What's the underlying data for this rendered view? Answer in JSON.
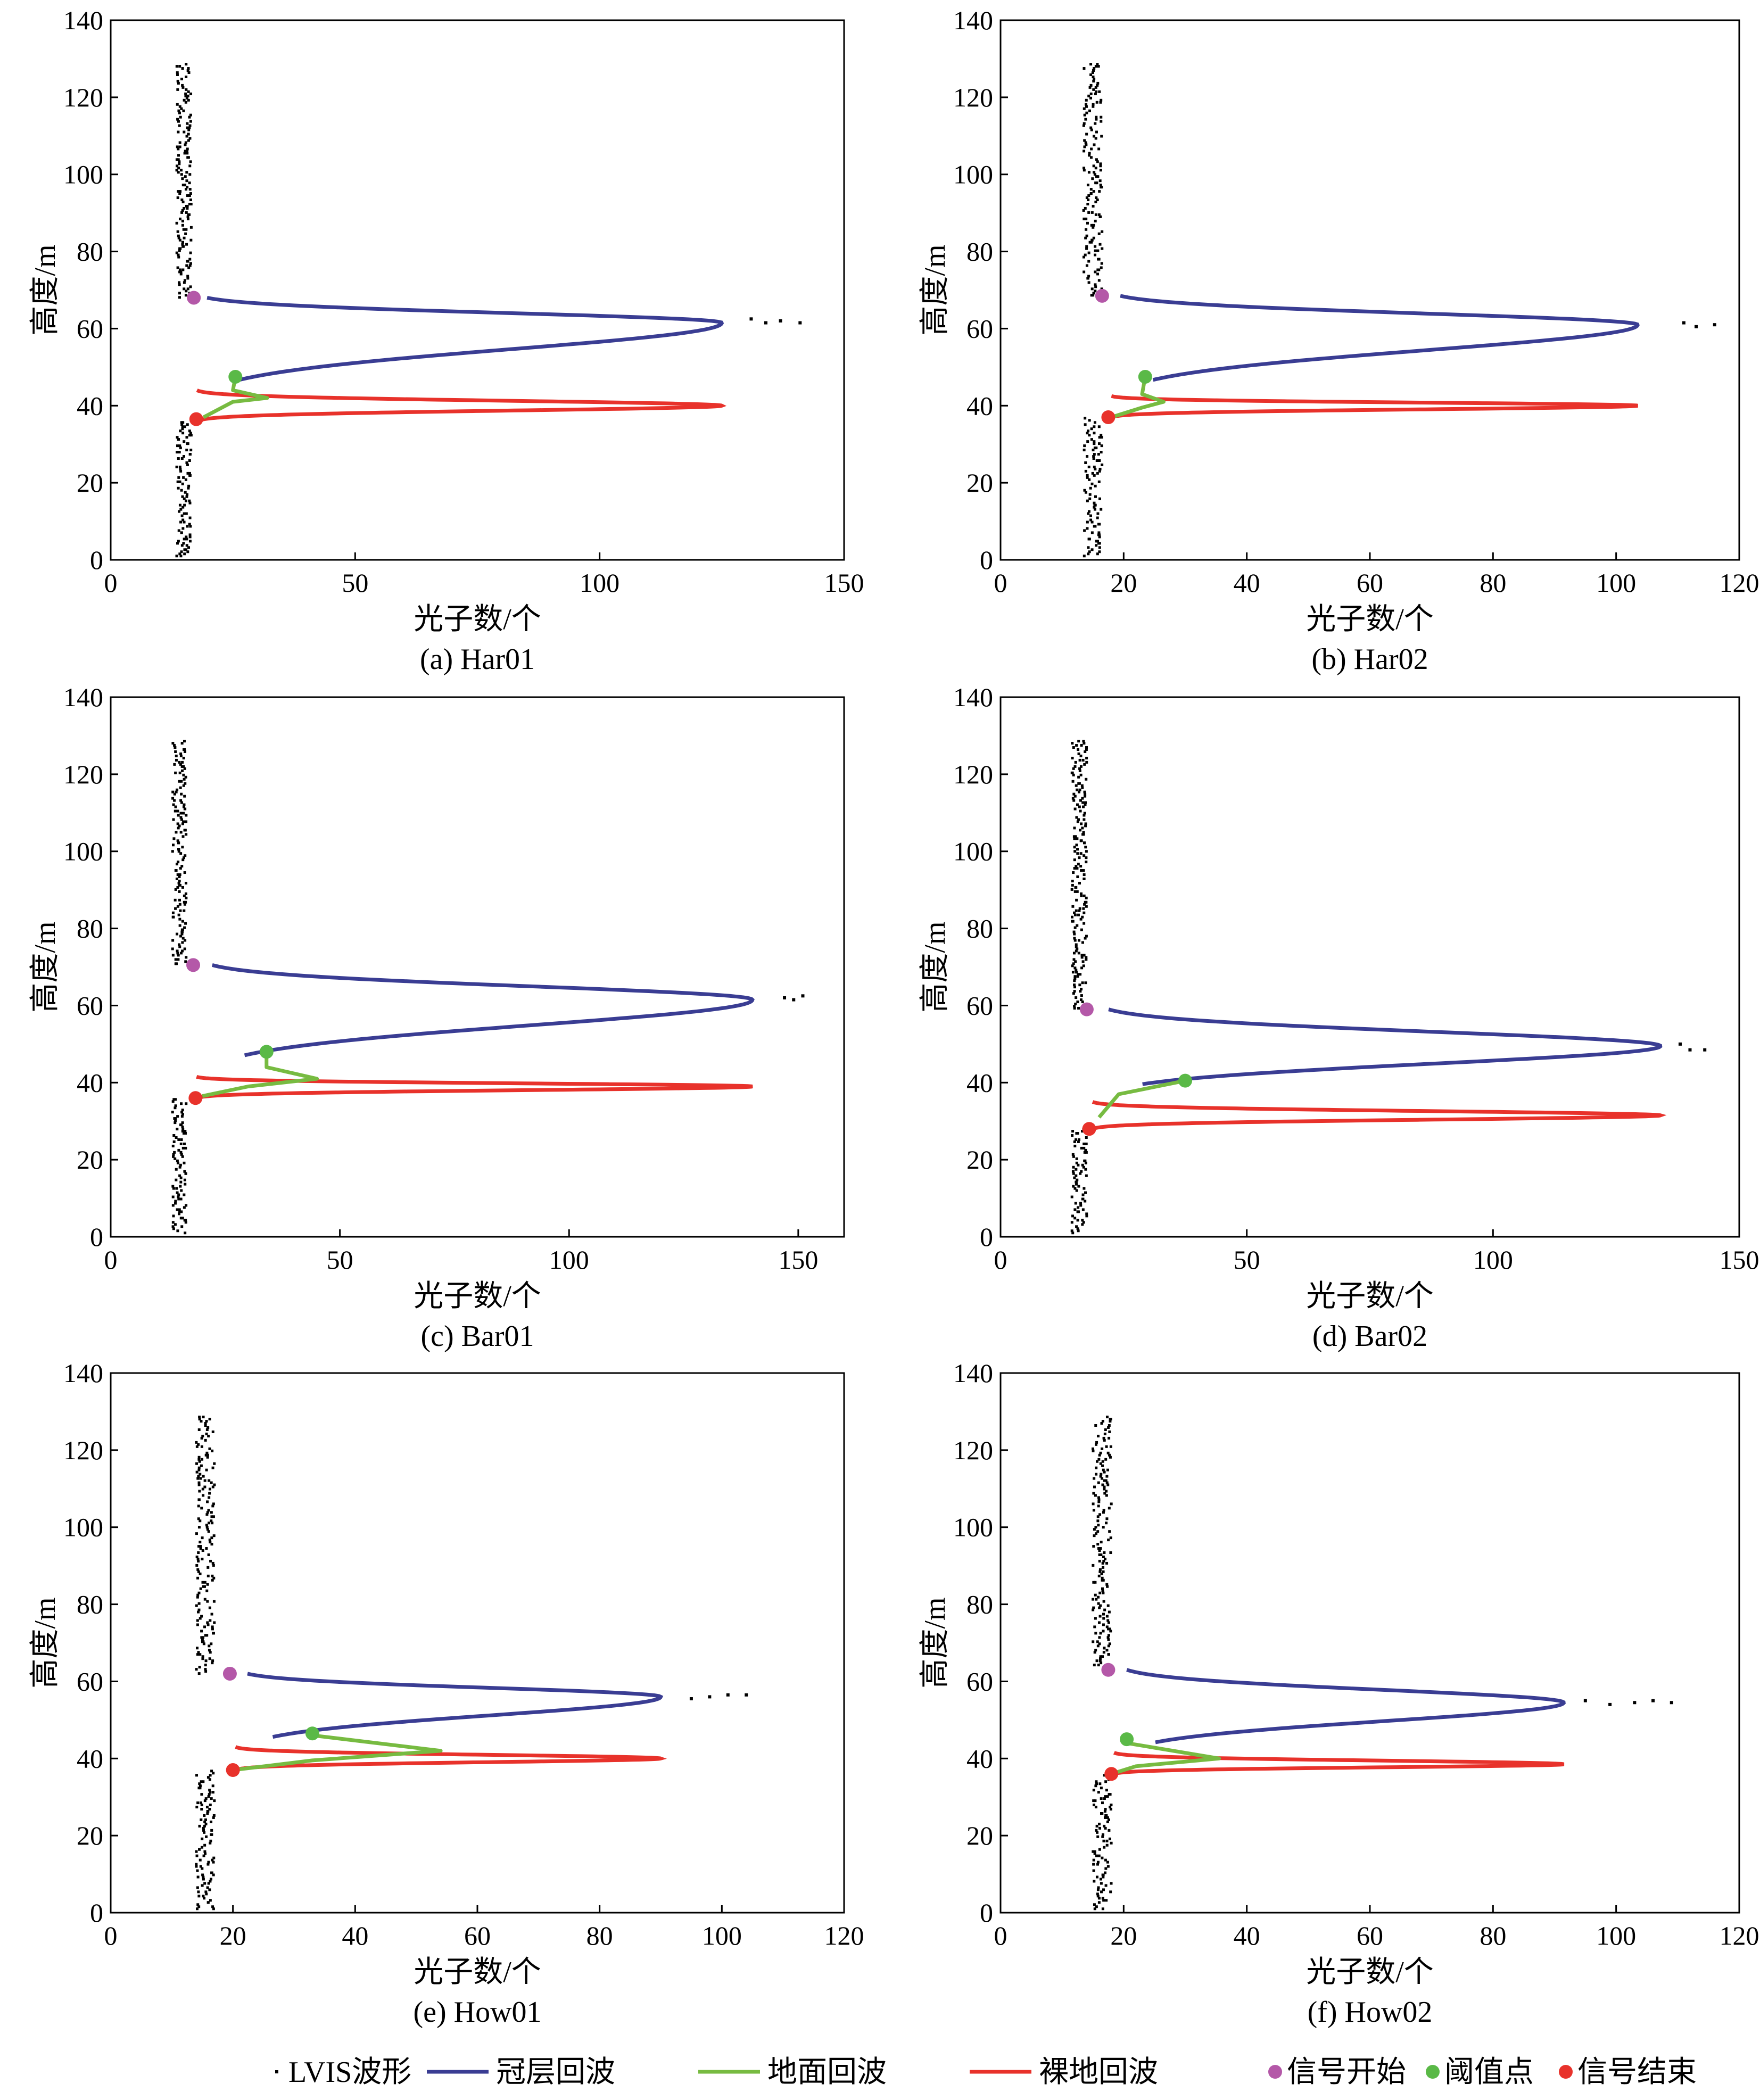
{
  "chart_data": [
    {
      "id": "a",
      "caption": "(a) Har01",
      "type": "line",
      "xlabel": "光子数/个",
      "ylabel": "高度/m",
      "xlim": [
        0,
        150
      ],
      "ylim": [
        0,
        140
      ],
      "xticks": [
        0,
        50,
        100,
        150
      ],
      "yticks": [
        0,
        20,
        40,
        60,
        80,
        100,
        120,
        140
      ],
      "noise": {
        "x_center": 15,
        "x_spread": 1.5,
        "ymax": 129
      },
      "canopy": {
        "base": 16,
        "peak_x": 125,
        "peak_y": 61.5,
        "top": 68,
        "tail": [
          [
            48,
            25
          ],
          [
            52,
            30
          ],
          [
            55,
            44
          ]
        ]
      },
      "ground": [
        [
          25,
          44
        ],
        [
          32,
          42
        ],
        [
          25,
          41
        ],
        [
          19,
          37
        ]
      ],
      "bare": {
        "x0": 17,
        "peak_x": 125,
        "peak_y": 40,
        "top": 44,
        "bottom": 36
      },
      "waveform_extra": [
        [
          131,
          62.5
        ],
        [
          134,
          61.5
        ],
        [
          137,
          62
        ],
        [
          141,
          61.5
        ]
      ],
      "signal_start": [
        17,
        68
      ],
      "threshold": [
        25.5,
        47.5
      ],
      "signal_end": [
        17.5,
        36.5
      ]
    },
    {
      "id": "b",
      "caption": "(b) Har02",
      "type": "line",
      "xlabel": "光子数/个",
      "ylabel": "高度/m",
      "xlim": [
        0,
        120
      ],
      "ylim": [
        0,
        140
      ],
      "xticks": [
        0,
        20,
        40,
        60,
        80,
        100,
        120
      ],
      "yticks": [
        0,
        20,
        40,
        60,
        80,
        100,
        120,
        140
      ],
      "noise": {
        "x_center": 15,
        "x_spread": 1.5,
        "ymax": 129
      },
      "canopy": {
        "base": 16.5,
        "peak_x": 103.5,
        "peak_y": 61,
        "top": 68.5,
        "tail": [
          [
            48,
            22
          ],
          [
            52,
            27
          ],
          [
            55,
            40
          ]
        ]
      },
      "ground": [
        [
          23,
          43
        ],
        [
          26.5,
          41
        ],
        [
          23,
          39.5
        ],
        [
          18,
          37
        ]
      ],
      "bare": {
        "x0": 17.5,
        "peak_x": 103.5,
        "peak_y": 40,
        "top": 42.5,
        "bottom": 37
      },
      "waveform_extra": [
        [
          111,
          61.5
        ],
        [
          113,
          60.5
        ],
        [
          116,
          61
        ]
      ],
      "signal_start": [
        16.5,
        68.5
      ],
      "threshold": [
        23.5,
        47.5
      ],
      "signal_end": [
        17.5,
        37
      ]
    },
    {
      "id": "c",
      "caption": "(c) Bar01",
      "type": "line",
      "xlabel": "光子数/个",
      "ylabel": "高度/m",
      "xlim": [
        0,
        160
      ],
      "ylim": [
        0,
        140
      ],
      "xticks": [
        0,
        50,
        100,
        150
      ],
      "yticks": [
        0,
        20,
        40,
        60,
        80,
        100,
        120,
        140
      ],
      "noise": {
        "x_center": 15,
        "x_spread": 1.5,
        "ymax": 129
      },
      "canopy": {
        "base": 18,
        "peak_x": 140,
        "peak_y": 61.5,
        "top": 70.5,
        "tail": [
          [
            48,
            33
          ],
          [
            52,
            60
          ],
          [
            55,
            62
          ],
          [
            57,
            66
          ],
          [
            60,
            80
          ]
        ]
      },
      "ground": [
        [
          34,
          44
        ],
        [
          45,
          41
        ],
        [
          30,
          39
        ],
        [
          20,
          36.5
        ]
      ],
      "bare": {
        "x0": 18,
        "peak_x": 140,
        "peak_y": 39,
        "top": 41.5,
        "bottom": 36
      },
      "waveform_extra": [
        [
          147,
          62
        ],
        [
          149,
          61.5
        ],
        [
          151,
          62.5
        ]
      ],
      "signal_start": [
        18,
        70.5
      ],
      "threshold": [
        34,
        48
      ],
      "signal_end": [
        18.5,
        36
      ]
    },
    {
      "id": "d",
      "caption": "(d) Bar02",
      "type": "line",
      "xlabel": "光子数/个",
      "ylabel": "高度/m",
      "xlim": [
        0,
        150
      ],
      "ylim": [
        0,
        140
      ],
      "xticks": [
        0,
        50,
        100,
        150
      ],
      "yticks": [
        0,
        20,
        40,
        60,
        80,
        100,
        120,
        140
      ],
      "noise": {
        "x_center": 16,
        "x_spread": 1.5,
        "ymax": 129
      },
      "canopy": {
        "base": 18,
        "peak_x": 134,
        "peak_y": 49.5,
        "top": 59,
        "tail": [
          [
            40.5,
            37.5
          ],
          [
            36,
            30
          ],
          [
            31,
            24
          ],
          [
            28,
            20
          ]
        ]
      },
      "ground": [
        [
          37.5,
          40.5
        ],
        [
          24,
          37
        ],
        [
          20,
          31
        ]
      ],
      "bare": {
        "x0": 18,
        "peak_x": 134,
        "peak_y": 31.5,
        "top": 35,
        "bottom": 28
      },
      "waveform_extra": [
        [
          138,
          50
        ],
        [
          140,
          48.5
        ],
        [
          143,
          48.5
        ]
      ],
      "signal_start": [
        17.5,
        59
      ],
      "threshold": [
        37.5,
        40.5
      ],
      "signal_end": [
        18,
        28
      ]
    },
    {
      "id": "e",
      "caption": "(e) How01",
      "type": "line",
      "xlabel": "光子数/个",
      "ylabel": "高度/m",
      "xlim": [
        0,
        120
      ],
      "ylim": [
        0,
        140
      ],
      "xticks": [
        0,
        20,
        40,
        60,
        80,
        100,
        120
      ],
      "yticks": [
        0,
        20,
        40,
        60,
        80,
        100,
        120,
        140
      ],
      "noise": {
        "x_center": 15.5,
        "x_spread": 1.5,
        "ymax": 129
      },
      "canopy": {
        "base": 20,
        "peak_x": 90,
        "peak_y": 56,
        "top": 62,
        "tail": [
          [
            46,
            33
          ],
          [
            48,
            38
          ],
          [
            50,
            46
          ]
        ]
      },
      "ground": [
        [
          33,
          46
        ],
        [
          54,
          42
        ],
        [
          33,
          39.5
        ],
        [
          20,
          37
        ]
      ],
      "bare": {
        "x0": 20,
        "peak_x": 90,
        "peak_y": 40,
        "top": 43,
        "bottom": 37
      },
      "waveform_extra": [
        [
          95,
          55.5
        ],
        [
          98,
          56
        ],
        [
          101,
          56.5
        ],
        [
          104,
          56.5
        ]
      ],
      "signal_start": [
        19.5,
        62
      ],
      "threshold": [
        33,
        46.5
      ],
      "signal_end": [
        20,
        37
      ]
    },
    {
      "id": "f",
      "caption": "(f) How02",
      "type": "line",
      "xlabel": "光子数/个",
      "ylabel": "高度/m",
      "xlim": [
        0,
        120
      ],
      "ylim": [
        0,
        140
      ],
      "xticks": [
        0,
        20,
        40,
        60,
        80,
        100,
        120
      ],
      "yticks": [
        0,
        20,
        40,
        60,
        80,
        100,
        120,
        140
      ],
      "noise": {
        "x_center": 16.5,
        "x_spread": 1.5,
        "ymax": 129
      },
      "canopy": {
        "base": 18,
        "peak_x": 91.5,
        "peak_y": 54.5,
        "top": 63,
        "tail": [
          [
            45,
            20
          ],
          [
            48,
            28
          ],
          [
            52,
            40
          ]
        ]
      },
      "ground": [
        [
          20.5,
          44
        ],
        [
          35.5,
          40
        ],
        [
          22,
          38
        ],
        [
          18,
          36
        ]
      ],
      "bare": {
        "x0": 18,
        "peak_x": 91.5,
        "peak_y": 38.5,
        "top": 41.5,
        "bottom": 36
      },
      "waveform_extra": [
        [
          95,
          55
        ],
        [
          99,
          54
        ],
        [
          103,
          54.5
        ],
        [
          106,
          55
        ],
        [
          109,
          54.5
        ]
      ],
      "signal_start": [
        17.5,
        63
      ],
      "threshold": [
        20.5,
        45
      ],
      "signal_end": [
        18,
        36
      ]
    }
  ],
  "legend": {
    "position": "bottom",
    "items": [
      {
        "key": "waveform",
        "label": "LVIS波形",
        "color": "#000000",
        "marker": "dot"
      },
      {
        "key": "canopy",
        "label": "冠层回波",
        "color": "#3a3d93",
        "marker": "line"
      },
      {
        "key": "ground",
        "label": "地面回波",
        "color": "#77bb41",
        "marker": "line"
      },
      {
        "key": "bare",
        "label": "裸地回波",
        "color": "#e8322b",
        "marker": "line"
      },
      {
        "key": "signal_start",
        "label": "信号开始",
        "color": "#b458a8",
        "marker": "circle"
      },
      {
        "key": "threshold",
        "label": "阈值点",
        "color": "#5ab947",
        "marker": "circle"
      },
      {
        "key": "signal_end",
        "label": "信号结束",
        "color": "#e8322b",
        "marker": "circle"
      }
    ]
  },
  "colors": {
    "canopy": "#3a3d93",
    "ground": "#77bb41",
    "bare": "#e8322b",
    "signal_start": "#b458a8",
    "threshold": "#5ab947",
    "signal_end": "#e8322b",
    "waveform": "#000000"
  }
}
